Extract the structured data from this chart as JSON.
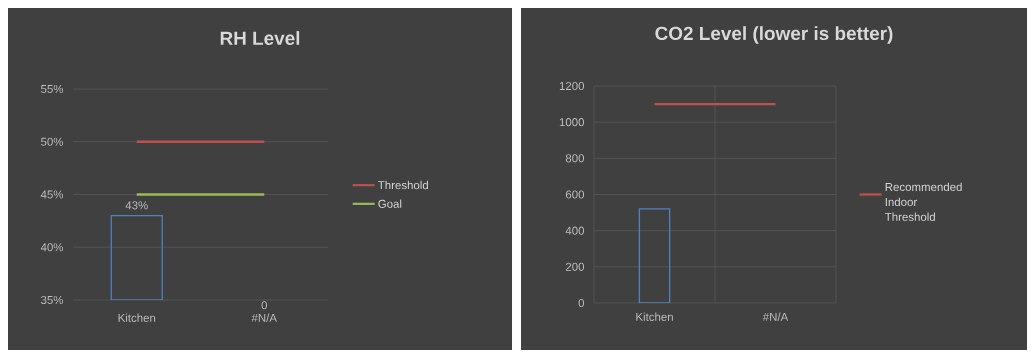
{
  "chart_data": [
    {
      "type": "bar",
      "title": "RH Level",
      "categories": [
        "Kitchen",
        "#N/A"
      ],
      "series": [
        {
          "color": "#4f81bd",
          "values": [
            43,
            null
          ],
          "value_labels": [
            "43%",
            "0"
          ]
        },
        {
          "type": "line",
          "name": "Threshold",
          "color": "#c0504d",
          "values": [
            50,
            50
          ]
        },
        {
          "type": "line",
          "name": "Goal",
          "color": "#9bbb59",
          "values": [
            45,
            45
          ]
        }
      ],
      "ylim": [
        35,
        55
      ],
      "yticks": [
        {
          "value": 35,
          "label": "35%"
        },
        {
          "value": 40,
          "label": "40%"
        },
        {
          "value": 45,
          "label": "45%"
        },
        {
          "value": 50,
          "label": "50%"
        },
        {
          "value": 55,
          "label": "55%"
        }
      ],
      "grid": "y",
      "legend": "right",
      "marker": "none"
    },
    {
      "type": "bar",
      "title": "CO2 Level (lower is better)",
      "categories": [
        "Kitchen",
        "#N/A"
      ],
      "series": [
        {
          "color": "#4f81bd",
          "values": [
            520,
            null
          ]
        },
        {
          "type": "line",
          "name": "Recommended Indoor Threshold",
          "color": "#c0504d",
          "values": [
            1100,
            1100
          ]
        }
      ],
      "ylim": [
        0,
        1200
      ],
      "yticks": [
        0,
        200,
        400,
        600,
        800,
        1000,
        1200
      ],
      "grid": true,
      "legend": "right",
      "marker": "none"
    }
  ]
}
